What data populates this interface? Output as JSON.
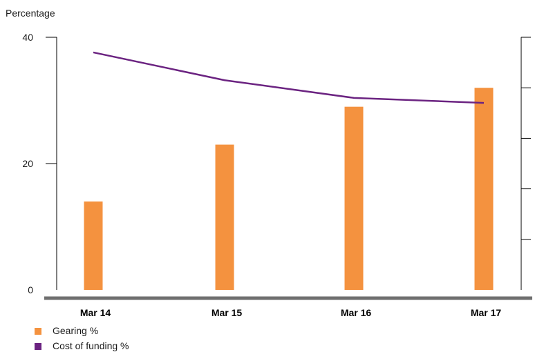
{
  "chart_data": {
    "type": "bar",
    "ylabel": "Percentage",
    "categories": [
      "Mar 14",
      "Mar 15",
      "Mar 16",
      "Mar 17"
    ],
    "ylim": [
      0,
      40
    ],
    "yticks": [
      "0",
      "20",
      "40"
    ],
    "right_axis": {
      "ylim": [
        0,
        5
      ],
      "tick_count": 6,
      "tick_labels": [
        "",
        "",
        "",
        "",
        "",
        ""
      ]
    },
    "series": [
      {
        "name": "Gearing %",
        "type": "bar",
        "axis": "left",
        "values": [
          14,
          23,
          29,
          32
        ],
        "color": "#F4923F"
      },
      {
        "name": "Cost of funding %",
        "type": "line",
        "axis": "right",
        "values": [
          4.7,
          4.15,
          3.8,
          3.7
        ],
        "color": "#6B2381"
      }
    ],
    "grid": false,
    "legend_position": "bottom-left"
  }
}
